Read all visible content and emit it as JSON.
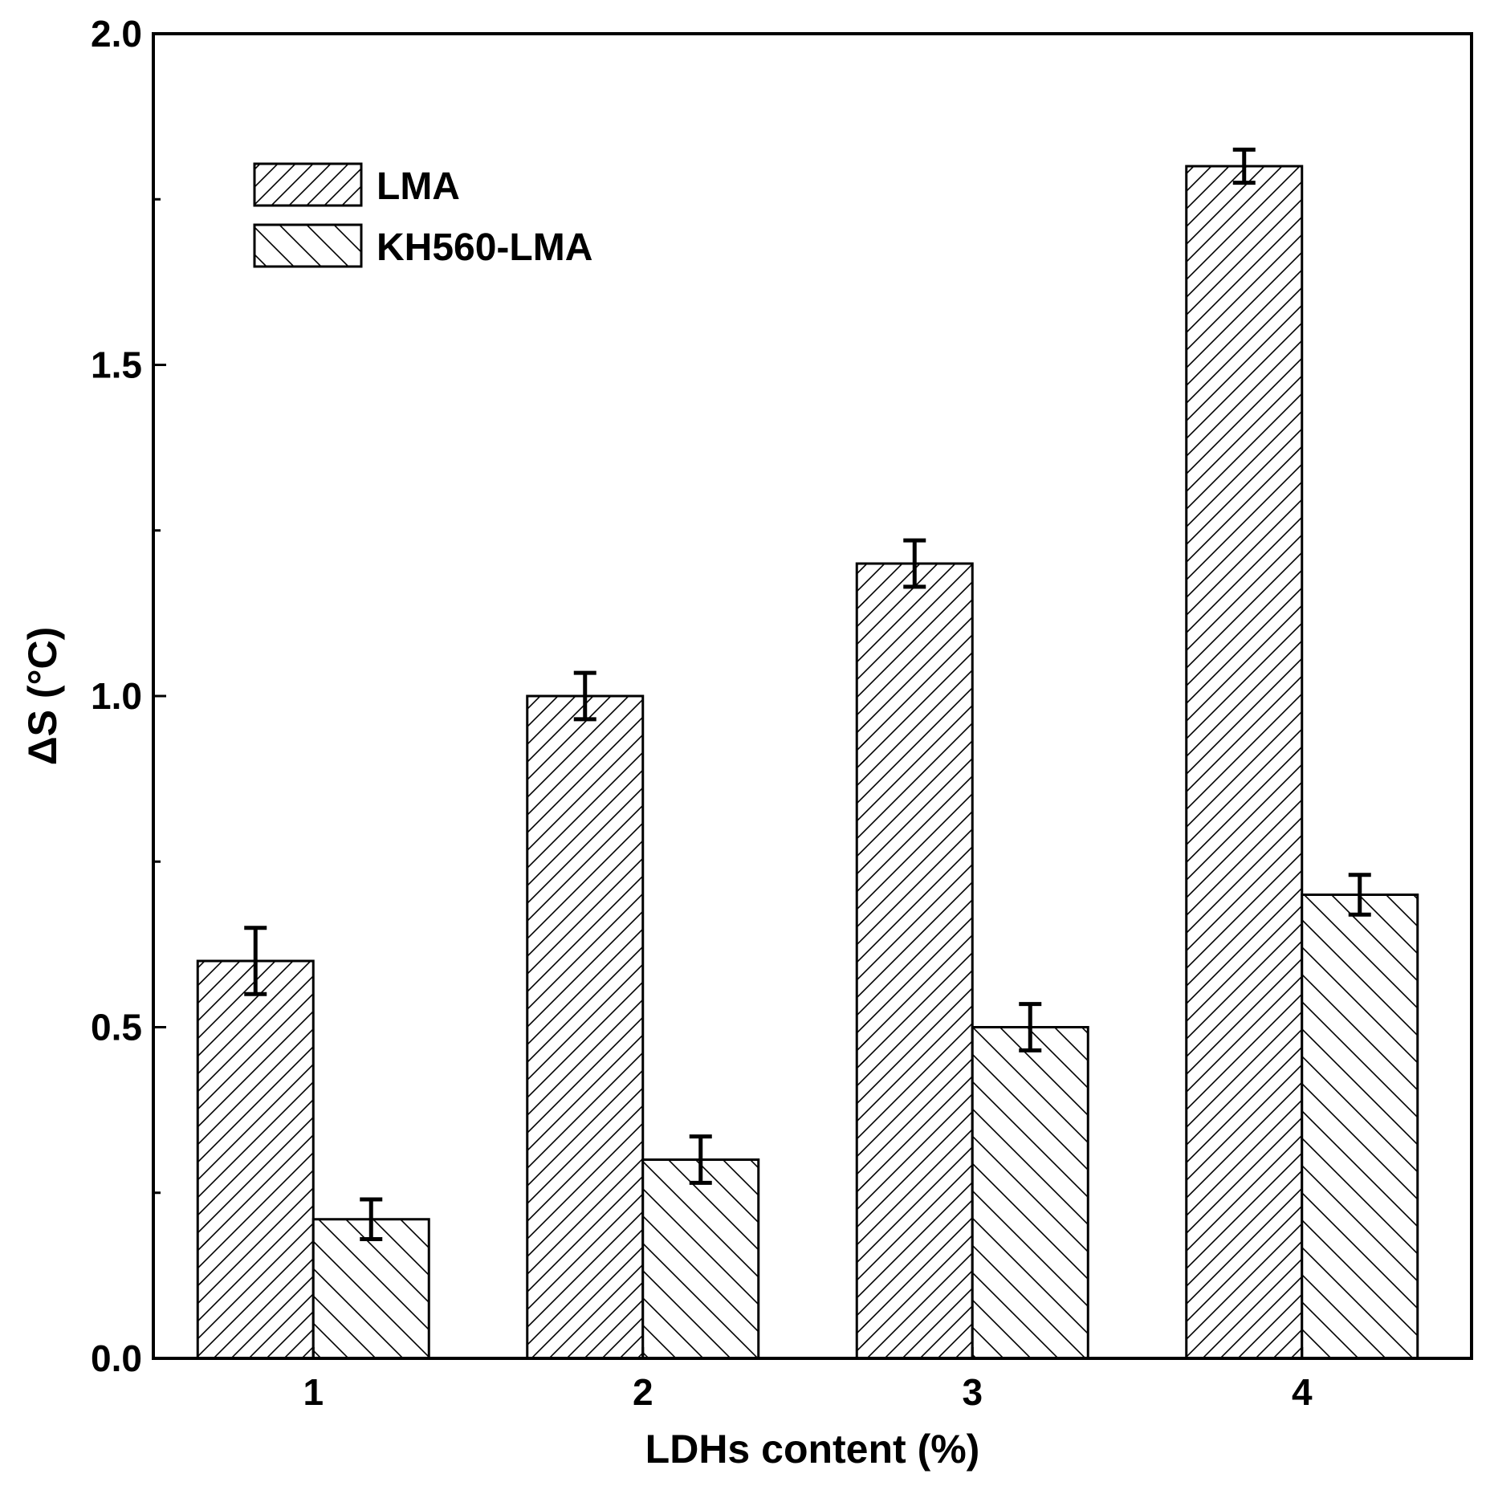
{
  "colors": {
    "axis": "#000000",
    "bar_fill": "#ffffff",
    "hatch": "#000000",
    "background": "#ffffff"
  },
  "chart_data": {
    "type": "bar",
    "title": "",
    "xlabel": "LDHs content (%)",
    "ylabel": "ΔS (°C)",
    "ylim": [
      0,
      2.0
    ],
    "y_ticks": [
      "0.0",
      "0.5",
      "1.0",
      "1.5",
      "2.0"
    ],
    "y_minor_ticks": [
      0.25,
      0.75,
      1.25,
      1.75
    ],
    "grid": false,
    "legend_position": "top-left",
    "categories": [
      "1",
      "2",
      "3",
      "4"
    ],
    "series": [
      {
        "name": "LMA",
        "hatch": "forward-diagonal",
        "values": [
          0.6,
          1.0,
          1.2,
          1.8
        ],
        "errors": [
          0.05,
          0.035,
          0.035,
          0.025
        ]
      },
      {
        "name": "KH560-LMA",
        "hatch": "back-diagonal",
        "values": [
          0.21,
          0.3,
          0.5,
          0.7
        ],
        "errors": [
          0.03,
          0.035,
          0.035,
          0.03
        ]
      }
    ]
  }
}
